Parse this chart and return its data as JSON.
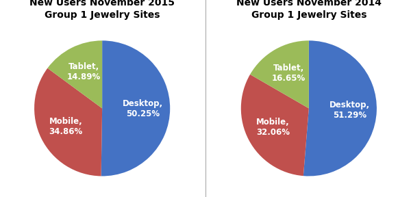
{
  "charts": [
    {
      "title": "New Users November 2015\nGroup 1 Jewelry Sites",
      "slices": [
        50.25,
        34.86,
        14.89
      ],
      "labels": [
        "Desktop,\n50.25%",
        "Mobile,\n34.86%",
        "Tablet,\n14.89%"
      ],
      "colors": [
        "#4472C4",
        "#C0504D",
        "#9BBB59"
      ],
      "startangle": 90
    },
    {
      "title": "New Users November 2014\nGroup 1 Jewelry Sites",
      "slices": [
        51.29,
        32.06,
        16.65
      ],
      "labels": [
        "Desktop,\n51.29%",
        "Mobile,\n32.06%",
        "Tablet,\n16.65%"
      ],
      "colors": [
        "#4472C4",
        "#C0504D",
        "#9BBB59"
      ],
      "startangle": 90
    }
  ],
  "label_color": "white",
  "label_fontsize": 8.5,
  "title_fontsize": 10,
  "background_color": "#FFFFFF",
  "divider_color": "#AAAAAA"
}
